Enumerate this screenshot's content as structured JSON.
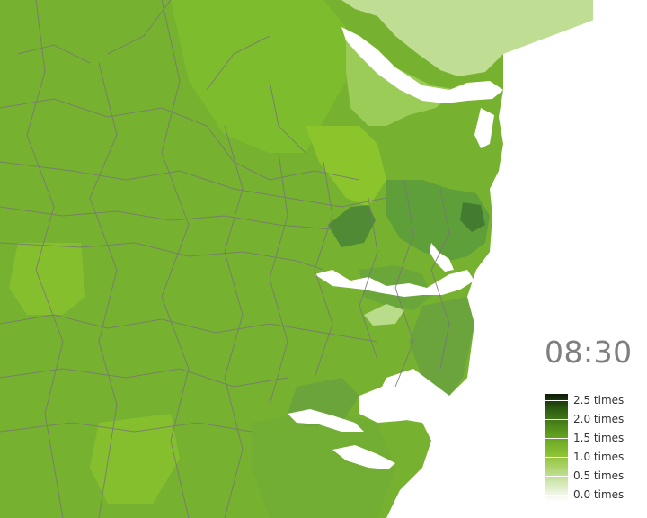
{
  "time_label": "08:30",
  "legend": {
    "labels": [
      "2.5 times",
      "2.0 times",
      "1.5 times",
      "1.0 times",
      "0.5 times",
      "0.0 times"
    ]
  },
  "colors": {
    "base_green": "#7ab533",
    "dark_green": "#4e8a34",
    "light_green": "#a9d06c",
    "pale_green": "#c5e19b",
    "border_gray": "#777777",
    "water": "#ffffff"
  }
}
